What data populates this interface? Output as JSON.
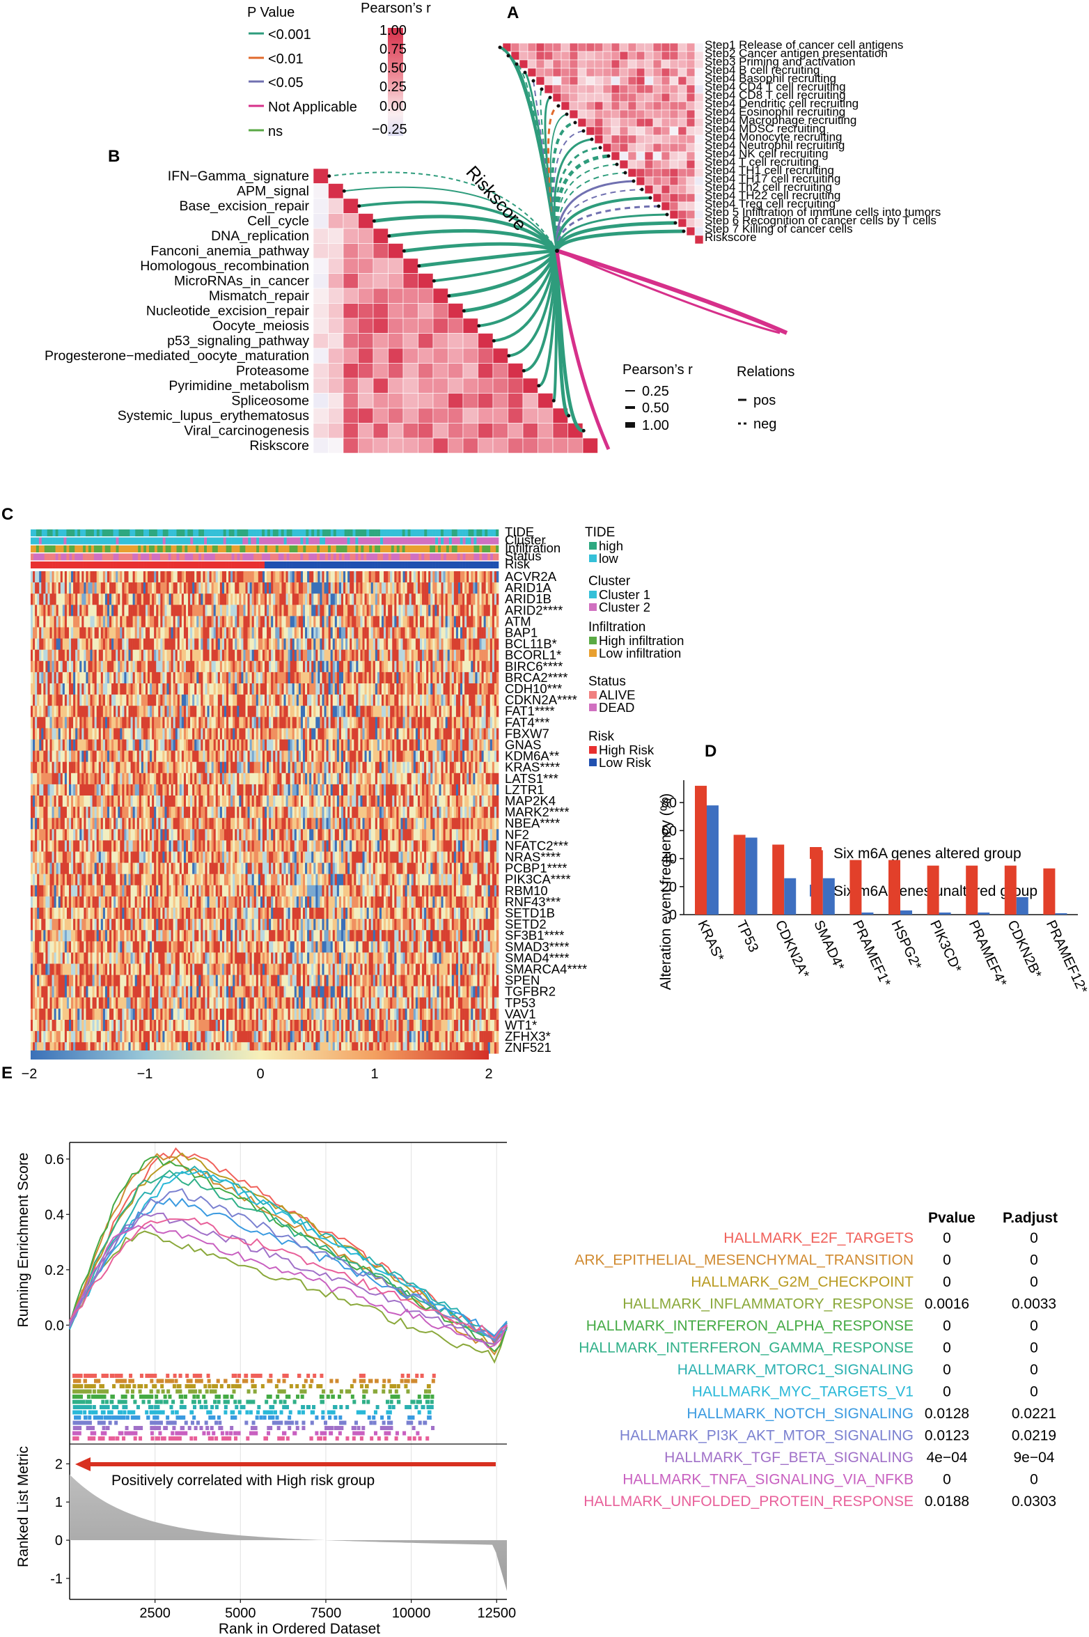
{
  "panel_labels": {
    "A": "A",
    "B": "B",
    "C": "C",
    "D": "D",
    "E": "E"
  },
  "colors": {
    "p001": "#2e9c7c",
    "p01": "#e06a2c",
    "p05": "#7070b0",
    "na": "#d6308a",
    "ns": "#5aa845",
    "heat_high": "#d6304a",
    "heat_mid": "#f7d8dc",
    "heat_low": "#e4e4f4",
    "red": "#e2402a",
    "blue": "#3e6fc0",
    "cyan": "#35c0d0",
    "green": "#5aaa44",
    "orange": "#e0a030",
    "pink": "#e88090",
    "violet": "#c080c8",
    "highrisk": "#e83030",
    "lowrisk": "#2050b0"
  },
  "legend_ab": {
    "pvalue_title": "P Value",
    "pvalue_items": [
      "<0.001",
      "<0.01",
      "<0.05",
      "Not Applicable",
      "ns"
    ],
    "pearson_title": "Pearson’s r",
    "pearson_ticks": [
      "1.00",
      "0.75",
      "0.50",
      "0.25",
      "0.00",
      "−0.25"
    ],
    "size_title": "Pearson’s r",
    "size_items": [
      "0.25",
      "0.50",
      "1.00"
    ],
    "relations_title": "Relations",
    "relations_items": [
      "pos",
      "neg"
    ],
    "riskscore_label": "Riskscore"
  },
  "panel_a": {
    "labels": [
      "Step1 Release of cancer cell antigens",
      "Step2 Cancer antigen presentation",
      "Step3 Priming and activation",
      "Step4 B cell recruiting",
      "Step4 Basophil recruiting",
      "Step4 CD4 T cell recruiting",
      "Step4 CD8 T cell recruiting",
      "Step4 Dendritic cell recruiting",
      "Step4 Eosinophil recruiting",
      "Step4 Macrophage recruiting",
      "Step4 MDSC recruiting",
      "Step4 Monocyte recruiting",
      "Step4 Neutrophil recruiting",
      "Step4 NK cell recruiting",
      "Step4 T cell recruiting",
      "Step4 TH1 cell recruiting",
      "Step4 TH17 cell recruiting",
      "Step4 Th2 cell recruiting",
      "Step4 TH22 cell recruiting",
      "Step4 Treg cell recruiting",
      "Step 5 Infiltration of immune cells into tumors",
      "Step 6 Recognition of cancer cells by T cells",
      "Step 7 Killing of cancer cells",
      "Riskscore"
    ]
  },
  "panel_b": {
    "labels": [
      "IFN−Gamma_signature",
      "APM_signal",
      "Base_excision_repair",
      "Cell_cycle",
      "DNA_replication",
      "Fanconi_anemia_pathway",
      "Homologous_recombination",
      "MicroRNAs_in_cancer",
      "Mismatch_repair",
      "Nucleotide_excision_repair",
      "Oocyte_meiosis",
      "p53_signaling_pathway",
      "Progesterone−mediated_oocyte_maturation",
      "Proteasome",
      "Pyrimidine_metabolism",
      "Spliceosome",
      "Systemic_lupus_erythematosus",
      "Viral_carcinogenesis",
      "Riskscore"
    ]
  },
  "panel_c": {
    "annotation_rows": [
      "TIDE",
      "Cluster",
      "Infiltration",
      "Status",
      "Risk"
    ],
    "genes": [
      "ACVR2A",
      "ARID1A",
      "ARID1B",
      "ARID2****",
      "ATM",
      "BAP1",
      "BCL11B*",
      "BCORL1*",
      "BIRC6****",
      "BRCA2****",
      "CDH10***",
      "CDKN2A****",
      "FAT1****",
      "FAT4***",
      "FBXW7",
      "GNAS",
      "KDM6A**",
      "KRAS****",
      "LATS1***",
      "LZTR1",
      "MAP2K4",
      "MARK2****",
      "NBEA****",
      "NF2",
      "NFATC2***",
      "NRAS****",
      "PCBP1****",
      "PIK3CA****",
      "RBM10",
      "RNF43***",
      "SETD1B",
      "SETD2",
      "SF3B1****",
      "SMAD3****",
      "SMAD4****",
      "SMARCA4****",
      "SPEN",
      "TGFBR2",
      "TP53",
      "VAV1",
      "WT1*",
      "ZFHX3*",
      "ZNF521"
    ],
    "colorbar_ticks": [
      "−2",
      "−1",
      "0",
      "1",
      "2"
    ],
    "legend": [
      {
        "title": "TIDE",
        "items": [
          {
            "label": "high",
            "color": "#2ea880"
          },
          {
            "label": "low",
            "color": "#35c0d8"
          }
        ]
      },
      {
        "title": "Cluster",
        "items": [
          {
            "label": "Cluster 1",
            "color": "#35c0d8"
          },
          {
            "label": "Cluster 2",
            "color": "#d070c0"
          }
        ]
      },
      {
        "title": "Infiltration",
        "items": [
          {
            "label": "High infiltration",
            "color": "#5aaa44"
          },
          {
            "label": "Low infiltration",
            "color": "#e8a030"
          }
        ]
      },
      {
        "title": "Status",
        "items": [
          {
            "label": "ALIVE",
            "color": "#f08080"
          },
          {
            "label": "DEAD",
            "color": "#d070c0"
          }
        ]
      },
      {
        "title": "Risk",
        "items": [
          {
            "label": "High Risk",
            "color": "#e83030"
          },
          {
            "label": "Low Risk",
            "color": "#2050b0"
          }
        ]
      }
    ]
  },
  "chart_data": [
    {
      "type": "bar",
      "panel": "D",
      "categories": [
        "KRAS*",
        "TP53",
        "CDKN2A*",
        "SMAD4*",
        "PRAMEF1*",
        "HSPG2*",
        "PIK3CD*",
        "PRAMEF4*",
        "CDKN2B*",
        "PRAMEF12*"
      ],
      "series": [
        {
          "name": "Six m6A genes altered group",
          "color": "#e2402a",
          "values": [
            92,
            57,
            50,
            46,
            39,
            39,
            35,
            35,
            35,
            33
          ]
        },
        {
          "name": "Six m6A genes unaltered group",
          "color": "#3e6fc0",
          "values": [
            78,
            55,
            26,
            26,
            1.5,
            3,
            1.5,
            1.5,
            12.5,
            1
          ]
        }
      ],
      "ylabel": "Alteration event frequency (%)",
      "xlabel": "",
      "yticks": [
        "0",
        "20",
        "40",
        "60",
        "80"
      ],
      "ylim": [
        0,
        96
      ]
    },
    {
      "type": "line",
      "panel": "E",
      "ylabel": "Running Enrichment Score",
      "ylabel2": "Ranked List Metric",
      "xlabel": "Rank in Ordered Dataset",
      "xticks": [
        "2500",
        "5000",
        "7500",
        "10000",
        "12500"
      ],
      "yticks": [
        "0.0",
        "0.2",
        "0.4",
        "0.6"
      ],
      "yticks2": [
        "2",
        "1",
        "0",
        "-1"
      ],
      "xlim": [
        0,
        12800
      ],
      "ylim": [
        -0.12,
        0.66
      ],
      "arrow_label": "Positively correlated with High risk group",
      "table_headers": [
        "Pvalue",
        "P.adjust"
      ],
      "series": [
        {
          "name": "HALLMARK_E2F_TARGETS",
          "color": "#f0605a",
          "pvalue": "0",
          "padjust": "0",
          "peak_x": 3300,
          "peak": 0.63,
          "end": -0.06
        },
        {
          "name": "ARK_EPITHELIAL_MESENCHYMAL_TRANSITION",
          "color": "#d08a30",
          "pvalue": "0",
          "padjust": "0",
          "peak_x": 2800,
          "peak": 0.61,
          "end": -0.1
        },
        {
          "name": "HALLMARK_G2M_CHECKPOINT",
          "color": "#b89a20",
          "pvalue": "0",
          "padjust": "0",
          "peak_x": 3400,
          "peak": 0.61,
          "end": -0.07
        },
        {
          "name": "HALLMARK_INFLAMMATORY_RESPONSE",
          "color": "#8aa83a",
          "pvalue": "0.0016",
          "padjust": "0.0033",
          "peak_x": 2200,
          "peak": 0.33,
          "end": -0.12
        },
        {
          "name": "HALLMARK_INTERFERON_ALPHA_RESPONSE",
          "color": "#44aa44",
          "pvalue": "0",
          "padjust": "0",
          "peak_x": 2600,
          "peak": 0.6,
          "end": -0.09
        },
        {
          "name": "HALLMARK_INTERFERON_GAMMA_RESPONSE",
          "color": "#30b088",
          "pvalue": "0",
          "padjust": "0",
          "peak_x": 2900,
          "peak": 0.55,
          "end": -0.06
        },
        {
          "name": "HALLMARK_MTORC1_SIGNALING",
          "color": "#2ab0b0",
          "pvalue": "0",
          "padjust": "0",
          "peak_x": 3600,
          "peak": 0.57,
          "end": -0.04
        },
        {
          "name": "HALLMARK_MYC_TARGETS_V1",
          "color": "#28b8d8",
          "pvalue": "0",
          "padjust": "0",
          "peak_x": 3800,
          "peak": 0.55,
          "end": -0.05
        },
        {
          "name": "HALLMARK_NOTCH_SIGNALING",
          "color": "#3a9ae0",
          "pvalue": "0.0128",
          "padjust": "0.0221",
          "peak_x": 3000,
          "peak": 0.45,
          "end": -0.03
        },
        {
          "name": "HALLMARK_PI3K_AKT_MTOR_SIGNALING",
          "color": "#7a80d0",
          "pvalue": "0.0123",
          "padjust": "0.0219",
          "peak_x": 3200,
          "peak": 0.48,
          "end": -0.05
        },
        {
          "name": "HALLMARK_TGF_BETA_SIGNALING",
          "color": "#a070c8",
          "pvalue": "4e−04",
          "padjust": "9e−04",
          "peak_x": 2500,
          "peak": 0.4,
          "end": -0.07
        },
        {
          "name": "HALLMARK_TNFA_SIGNALING_VIA_NFKB",
          "color": "#c860c0",
          "pvalue": "0",
          "padjust": "0",
          "peak_x": 2000,
          "peak": 0.36,
          "end": -0.08
        },
        {
          "name": "HALLMARK_UNFOLDED_PROTEIN_RESPONSE",
          "color": "#e8609a",
          "pvalue": "0.0188",
          "padjust": "0.0303",
          "peak_x": 3100,
          "peak": 0.39,
          "end": -0.04
        }
      ]
    }
  ]
}
